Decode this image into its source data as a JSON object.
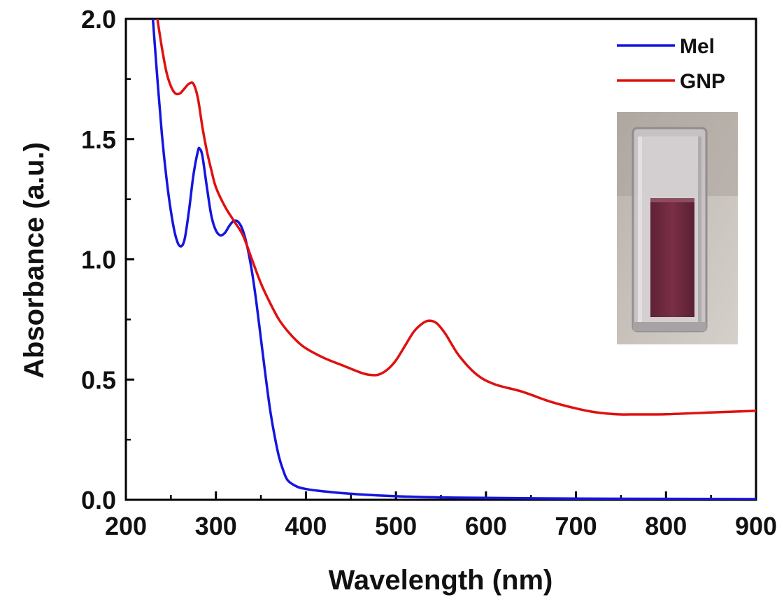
{
  "chart_data": {
    "type": "line",
    "xlabel": "Wavelength (nm)",
    "ylabel": "Absorbance (a.u.)",
    "xlim": [
      200,
      900
    ],
    "ylim": [
      0,
      2.0
    ],
    "xticks": [
      200,
      300,
      400,
      500,
      600,
      700,
      800,
      900
    ],
    "xtick_labels": [
      "200",
      "300",
      "400",
      "500",
      "600",
      "700",
      "800",
      "900"
    ],
    "yticks": [
      0,
      0.5,
      1.0,
      1.5,
      2.0
    ],
    "ytick_labels": [
      "0.0",
      "0.5",
      "1.0",
      "1.5",
      "2.0"
    ],
    "legend": {
      "placement": "top-right"
    },
    "grid": false,
    "inset": {
      "description_icon": "cuvette-photo-icon",
      "liquid_color": "#7a2f45"
    },
    "series": [
      {
        "name": "Mel",
        "color": "#1515e0",
        "x": [
          230,
          235,
          240,
          245,
          250,
          255,
          260,
          265,
          270,
          275,
          280,
          282,
          285,
          290,
          295,
          300,
          305,
          310,
          315,
          320,
          325,
          330,
          335,
          340,
          345,
          350,
          355,
          360,
          365,
          370,
          375,
          380,
          390,
          400,
          420,
          450,
          500,
          550,
          600,
          700,
          800,
          900
        ],
        "y": [
          2.0,
          1.75,
          1.52,
          1.34,
          1.2,
          1.1,
          1.055,
          1.08,
          1.2,
          1.35,
          1.45,
          1.46,
          1.43,
          1.3,
          1.18,
          1.12,
          1.1,
          1.11,
          1.14,
          1.16,
          1.155,
          1.12,
          1.05,
          0.95,
          0.82,
          0.67,
          0.52,
          0.38,
          0.27,
          0.18,
          0.12,
          0.08,
          0.055,
          0.045,
          0.035,
          0.025,
          0.015,
          0.01,
          0.008,
          0.005,
          0.004,
          0.003
        ]
      },
      {
        "name": "GNP",
        "color": "#e01010",
        "x": [
          235,
          240,
          245,
          250,
          255,
          260,
          265,
          270,
          275,
          280,
          285,
          290,
          295,
          300,
          310,
          320,
          330,
          340,
          350,
          360,
          370,
          380,
          390,
          400,
          420,
          440,
          460,
          470,
          480,
          490,
          500,
          510,
          520,
          530,
          537,
          545,
          555,
          570,
          590,
          610,
          640,
          670,
          700,
          720,
          740,
          750,
          760,
          800,
          850,
          900
        ],
        "y": [
          2.0,
          1.88,
          1.78,
          1.72,
          1.69,
          1.69,
          1.71,
          1.73,
          1.73,
          1.67,
          1.55,
          1.45,
          1.37,
          1.3,
          1.22,
          1.16,
          1.1,
          1.0,
          0.9,
          0.82,
          0.75,
          0.7,
          0.66,
          0.63,
          0.59,
          0.56,
          0.53,
          0.52,
          0.52,
          0.54,
          0.58,
          0.64,
          0.7,
          0.735,
          0.745,
          0.735,
          0.69,
          0.6,
          0.52,
          0.48,
          0.45,
          0.41,
          0.38,
          0.365,
          0.357,
          0.355,
          0.355,
          0.356,
          0.363,
          0.37
        ]
      }
    ]
  }
}
